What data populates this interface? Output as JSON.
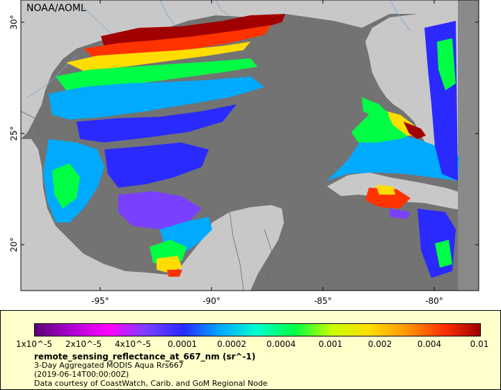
{
  "map": {
    "credit": "NOAA/AOML",
    "lat_ticks": [
      "30°",
      "25°",
      "20°"
    ],
    "lon_ticks": [
      "-95°",
      "-90°",
      "-85°",
      "-80°"
    ],
    "colors": {
      "water": "#737373",
      "land": "#c8c8c8",
      "river": "#7aa6d6",
      "border": "#6a6a6a"
    }
  },
  "legend": {
    "colorbar_labels": [
      "1x10^-5",
      "2x10^-5",
      "4x10^-5",
      "0.0001",
      "0.0002",
      "0.0004",
      "0.001",
      "0.002",
      "0.004",
      "0.01"
    ],
    "colorbar_colors": [
      "#5a007a",
      "#b000d0",
      "#ff00ff",
      "#7a40ff",
      "#2a2aff",
      "#00aaff",
      "#00ffcc",
      "#00ff44",
      "#c8ff00",
      "#ffdd00",
      "#ff9900",
      "#ff3300",
      "#a00000"
    ],
    "title": "remote_sensing_reflectance_at_667_nm (sr^-1)",
    "line1": "3-Day Aggregated MODIS Aqua Rrs667",
    "line2": "(2019-06-14T00:00:00Z)",
    "line3": "Data courtesy of CoastWatch, Carib. and GoM Regional Node",
    "background": "#ffffcc"
  }
}
